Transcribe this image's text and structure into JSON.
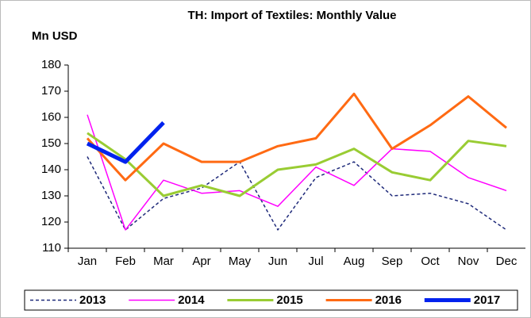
{
  "chart_data": {
    "type": "line",
    "title": "TH: Import of Textiles: Monthly Value",
    "y_label": "Mn USD",
    "categories": [
      "Jan",
      "Feb",
      "Mar",
      "Apr",
      "May",
      "Jun",
      "Jul",
      "Aug",
      "Sep",
      "Oct",
      "Nov",
      "Dec"
    ],
    "series": [
      {
        "name": "2013",
        "color": "#1f2a7a",
        "dashed": true,
        "width": 1.5,
        "values": [
          145,
          117,
          129,
          133,
          143,
          117,
          137,
          143,
          130,
          131,
          127,
          117
        ]
      },
      {
        "name": "2014",
        "color": "#ff00ff",
        "dashed": false,
        "width": 1.5,
        "values": [
          161,
          117,
          136,
          131,
          132,
          126,
          141,
          134,
          148,
          147,
          137,
          132
        ]
      },
      {
        "name": "2015",
        "color": "#99cc33",
        "dashed": false,
        "width": 3,
        "values": [
          154,
          144,
          130,
          134,
          130,
          140,
          142,
          148,
          139,
          136,
          151,
          149
        ]
      },
      {
        "name": "2016",
        "color": "#ff6a13",
        "dashed": false,
        "width": 3,
        "values": [
          152,
          136,
          150,
          143,
          143,
          149,
          152,
          169,
          148,
          157,
          168,
          156
        ]
      },
      {
        "name": "2017",
        "color": "#0022ee",
        "dashed": false,
        "width": 5,
        "values": [
          150,
          143,
          158,
          null,
          null,
          null,
          null,
          null,
          null,
          null,
          null,
          null
        ]
      }
    ],
    "ylim": [
      110,
      180
    ],
    "yticks": [
      110,
      120,
      130,
      140,
      150,
      160,
      170,
      180
    ],
    "legend": "bottom"
  }
}
